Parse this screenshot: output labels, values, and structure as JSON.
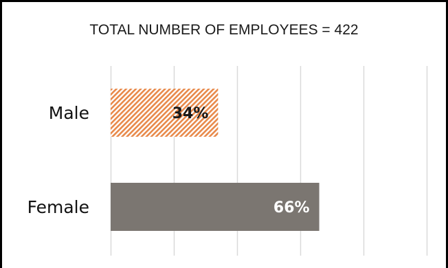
{
  "chart_data": {
    "type": "bar",
    "orientation": "horizontal",
    "title": "TOTAL NUMBER OF EMPLOYEES = 422",
    "categories": [
      "Male",
      "Female"
    ],
    "values": [
      34,
      66
    ],
    "data_labels": [
      "34%",
      "66%"
    ],
    "xlim": [
      0,
      100
    ],
    "grid": true,
    "legend": "none",
    "colors": {
      "male_fill": "#e8894a",
      "male_hatch_bg": "#ffffff",
      "female_fill": "#7b7671",
      "male_label": "#1a1a1a",
      "female_label": "#ffffff",
      "grid": "#d9d9d9"
    }
  }
}
